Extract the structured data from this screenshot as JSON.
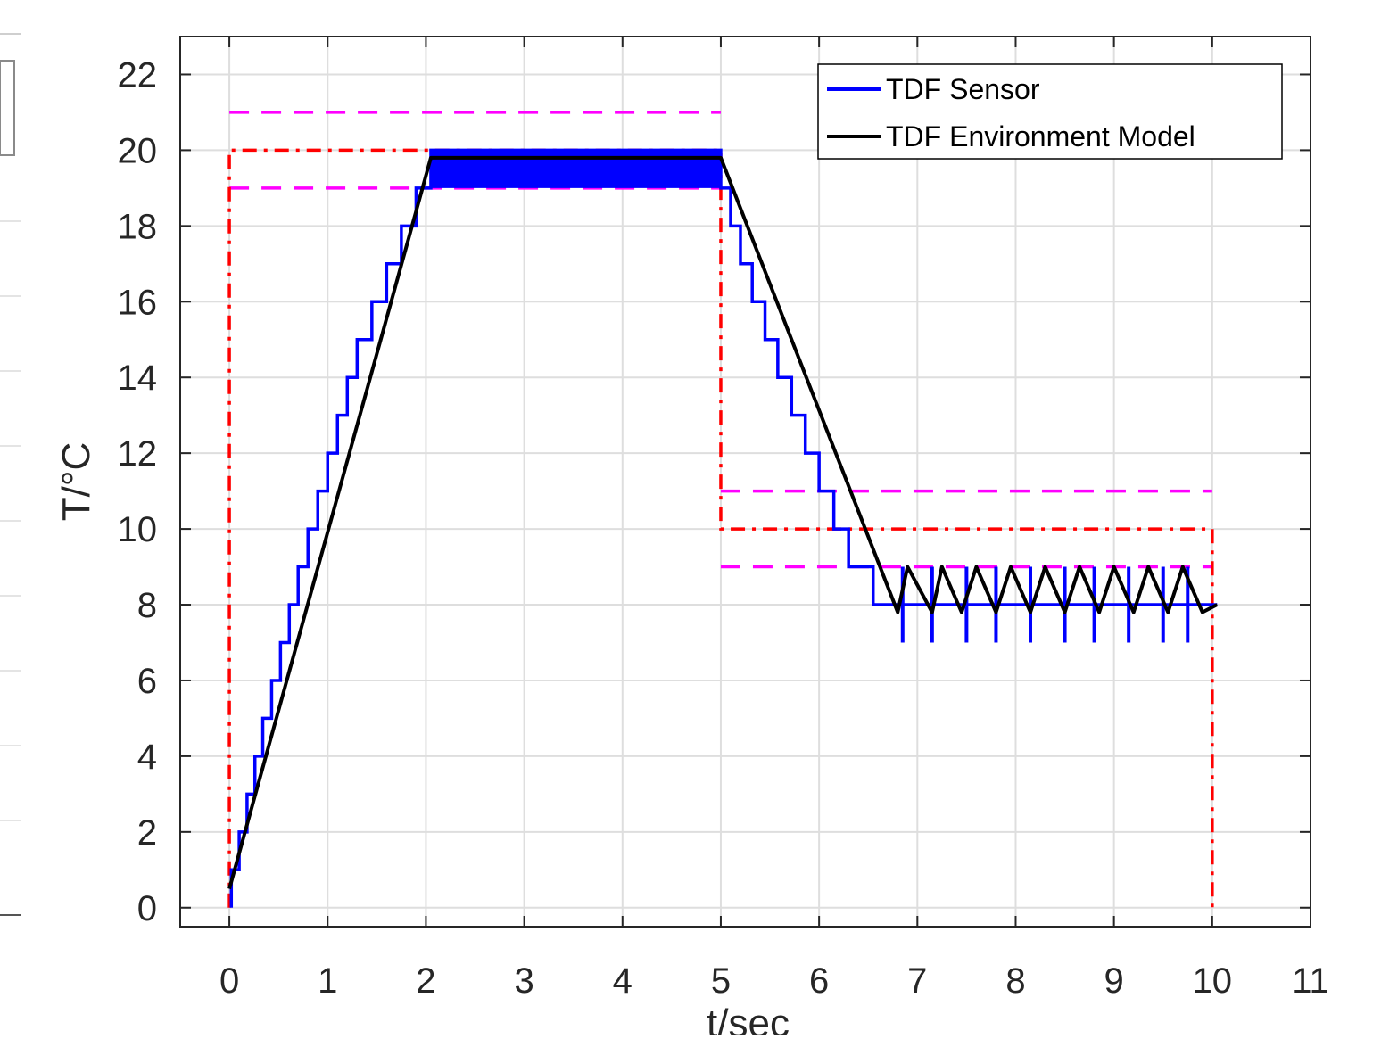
{
  "chart_data": {
    "type": "line",
    "xlabel": "t/sec",
    "ylabel": "T/°C",
    "xlim": [
      -0.5,
      11
    ],
    "ylim": [
      -0.5,
      23
    ],
    "xticks": [
      "0",
      "1",
      "2",
      "3",
      "4",
      "5",
      "6",
      "7",
      "8",
      "9",
      "10",
      "11"
    ],
    "yticks": [
      "0",
      "2",
      "4",
      "6",
      "8",
      "10",
      "12",
      "14",
      "16",
      "18",
      "20",
      "22"
    ],
    "grid": true,
    "legend_position": "top-right",
    "series": [
      {
        "name": "TDF Sensor",
        "color": "#0000ff",
        "style": "solid",
        "x": [
          0.02,
          0.02,
          0.1,
          0.1,
          0.18,
          0.18,
          0.26,
          0.26,
          0.34,
          0.34,
          0.43,
          0.43,
          0.52,
          0.52,
          0.61,
          0.61,
          0.7,
          0.7,
          0.8,
          0.8,
          0.9,
          0.9,
          1.0,
          1.0,
          1.1,
          1.1,
          1.2,
          1.2,
          1.3,
          1.3,
          1.45,
          1.45,
          1.6,
          1.6,
          1.75,
          1.75,
          1.9,
          1.9,
          2.05,
          2.05,
          5.0,
          5.0,
          5.1,
          5.1,
          5.2,
          5.2,
          5.32,
          5.32,
          5.45,
          5.45,
          5.58,
          5.58,
          5.72,
          5.72,
          5.86,
          5.86,
          6.0,
          6.0,
          6.15,
          6.15,
          6.3,
          6.3,
          6.55,
          6.55,
          10.05
        ],
        "y": [
          0,
          1,
          1,
          2,
          2,
          3,
          3,
          4,
          4,
          5,
          5,
          6,
          6,
          7,
          7,
          8,
          8,
          9,
          9,
          10,
          10,
          11,
          11,
          12,
          12,
          13,
          13,
          14,
          14,
          15,
          15,
          16,
          16,
          17,
          17,
          18,
          18,
          19,
          19,
          20,
          20,
          19,
          19,
          18,
          18,
          17,
          17,
          16,
          16,
          15,
          15,
          14,
          14,
          13,
          13,
          12,
          12,
          11,
          11,
          10,
          10,
          9,
          9,
          8,
          8
        ]
      },
      {
        "name": "TDF Environment Model",
        "color": "#000000",
        "style": "solid",
        "x": [
          0.0,
          2.05,
          5.0,
          6.8,
          6.9,
          7.15,
          7.25,
          7.45,
          7.6,
          7.8,
          7.95,
          8.15,
          8.3,
          8.5,
          8.65,
          8.85,
          9.0,
          9.2,
          9.35,
          9.55,
          9.7,
          9.9,
          10.05
        ],
        "y": [
          0.5,
          19.8,
          19.8,
          7.8,
          9.0,
          7.8,
          9.0,
          7.8,
          9.0,
          7.8,
          9.0,
          7.8,
          9.0,
          7.8,
          9.0,
          7.8,
          9.0,
          7.8,
          9.0,
          7.8,
          9.0,
          7.8,
          8.0
        ]
      }
    ],
    "setpoint_envelope": {
      "color": "#ff0000",
      "style": "dash-dot",
      "x": [
        0,
        0,
        5,
        5,
        10,
        10
      ],
      "y": [
        0,
        20,
        20,
        10,
        10,
        0
      ]
    },
    "tolerance_bands": {
      "color": "#ff00ff",
      "style": "dashed",
      "segments": [
        {
          "x": [
            0,
            5
          ],
          "y": [
            21,
            21
          ]
        },
        {
          "x": [
            0,
            5
          ],
          "y": [
            19,
            19
          ]
        },
        {
          "x": [
            5,
            10
          ],
          "y": [
            11,
            11
          ]
        },
        {
          "x": [
            5,
            10
          ],
          "y": [
            9,
            9
          ]
        }
      ]
    },
    "sensor_band_2_5": {
      "x": [
        2.05,
        5.0
      ],
      "y": [
        19,
        20
      ],
      "color": "#0000ff"
    },
    "sensor_spikes": {
      "x": [
        6.85,
        7.15,
        7.5,
        7.8,
        8.15,
        8.5,
        8.8,
        9.15,
        9.5,
        9.75
      ],
      "y_low": 7,
      "y_high": 9,
      "color": "#0000ff"
    }
  }
}
